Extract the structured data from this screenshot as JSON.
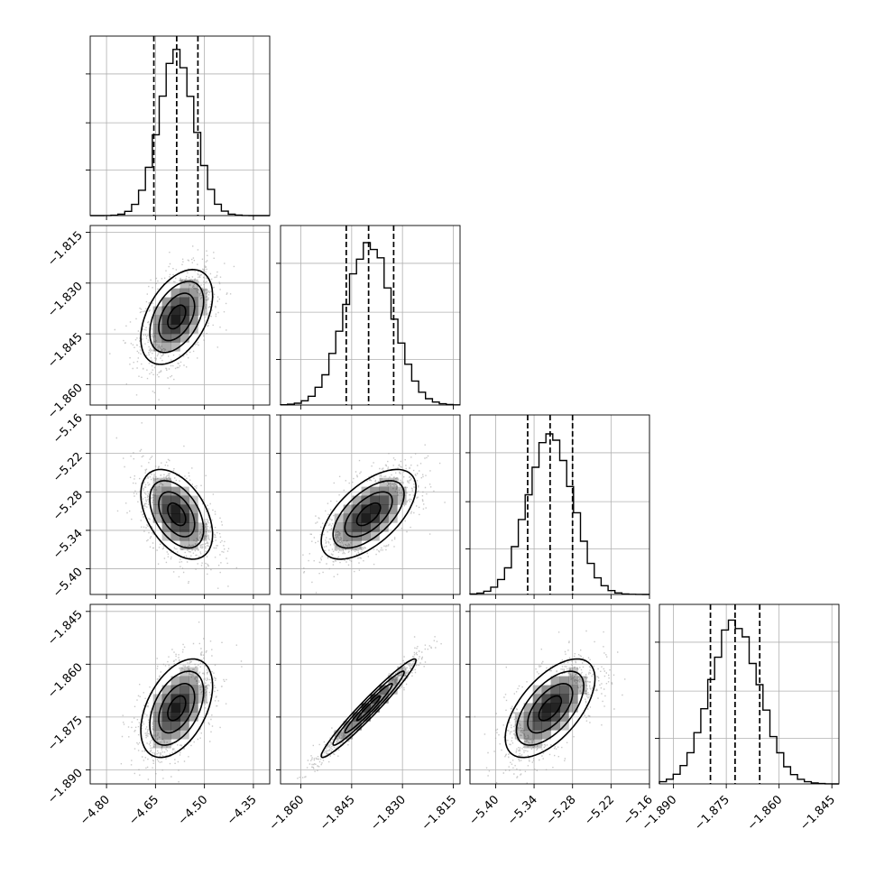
{
  "chart_data": {
    "type": "corner",
    "title": "",
    "parameters": [
      {
        "range": [
          -4.85,
          -4.3
        ],
        "ticks": [
          -4.8,
          -4.65,
          -4.5,
          -4.35
        ],
        "tick_labels": [
          "−4.80",
          "−4.65",
          "−4.50",
          "−4.35"
        ],
        "quantiles": [
          -4.655,
          -4.585,
          -4.52
        ],
        "median": -4.585,
        "sigma": 0.055
      },
      {
        "range": [
          -1.866,
          -1.813
        ],
        "ticks": [
          -1.86,
          -1.845,
          -1.83,
          -1.815
        ],
        "tick_labels": [
          "−1.860",
          "−1.845",
          "−1.830",
          "−1.815"
        ],
        "quantiles": [
          -1.8466,
          -1.84,
          -1.8326
        ],
        "median": -1.84,
        "sigma": 0.007
      },
      {
        "range": [
          -5.44,
          -5.16
        ],
        "ticks": [
          -5.4,
          -5.34,
          -5.28,
          -5.22,
          -5.16
        ],
        "tick_labels": [
          "−5.40",
          "−5.34",
          "−5.28",
          "−5.22",
          "−5.16"
        ],
        "quantiles": [
          -5.35,
          -5.315,
          -5.28
        ],
        "median": -5.315,
        "sigma": 0.035
      },
      {
        "range": [
          -1.894,
          -1.843
        ],
        "ticks": [
          -1.89,
          -1.875,
          -1.86,
          -1.845
        ],
        "tick_labels": [
          "−1.890",
          "−1.875",
          "−1.860",
          "−1.845"
        ],
        "quantiles": [
          -1.8795,
          -1.8725,
          -1.8655
        ],
        "median": -1.8725,
        "sigma": 0.007
      }
    ],
    "pair_correlations": [
      {
        "row": 1,
        "col": 0,
        "rho": 0.45
      },
      {
        "row": 2,
        "col": 0,
        "rho": -0.45
      },
      {
        "row": 2,
        "col": 1,
        "rho": 0.6
      },
      {
        "row": 3,
        "col": 0,
        "rho": 0.45
      },
      {
        "row": 3,
        "col": 1,
        "rho": 0.97
      },
      {
        "row": 3,
        "col": 2,
        "rho": 0.6
      }
    ],
    "contour_levels_sigma": [
      0.5,
      1.0,
      1.5,
      2.0
    ],
    "xlabels": [
      "",
      "",
      "",
      ""
    ],
    "ylabels": [
      "",
      "",
      "",
      ""
    ],
    "grid": true,
    "colors": {
      "line": "#000000",
      "density": "#000000",
      "points": "#9a9a9a",
      "grid": "#b0b0b0"
    }
  }
}
